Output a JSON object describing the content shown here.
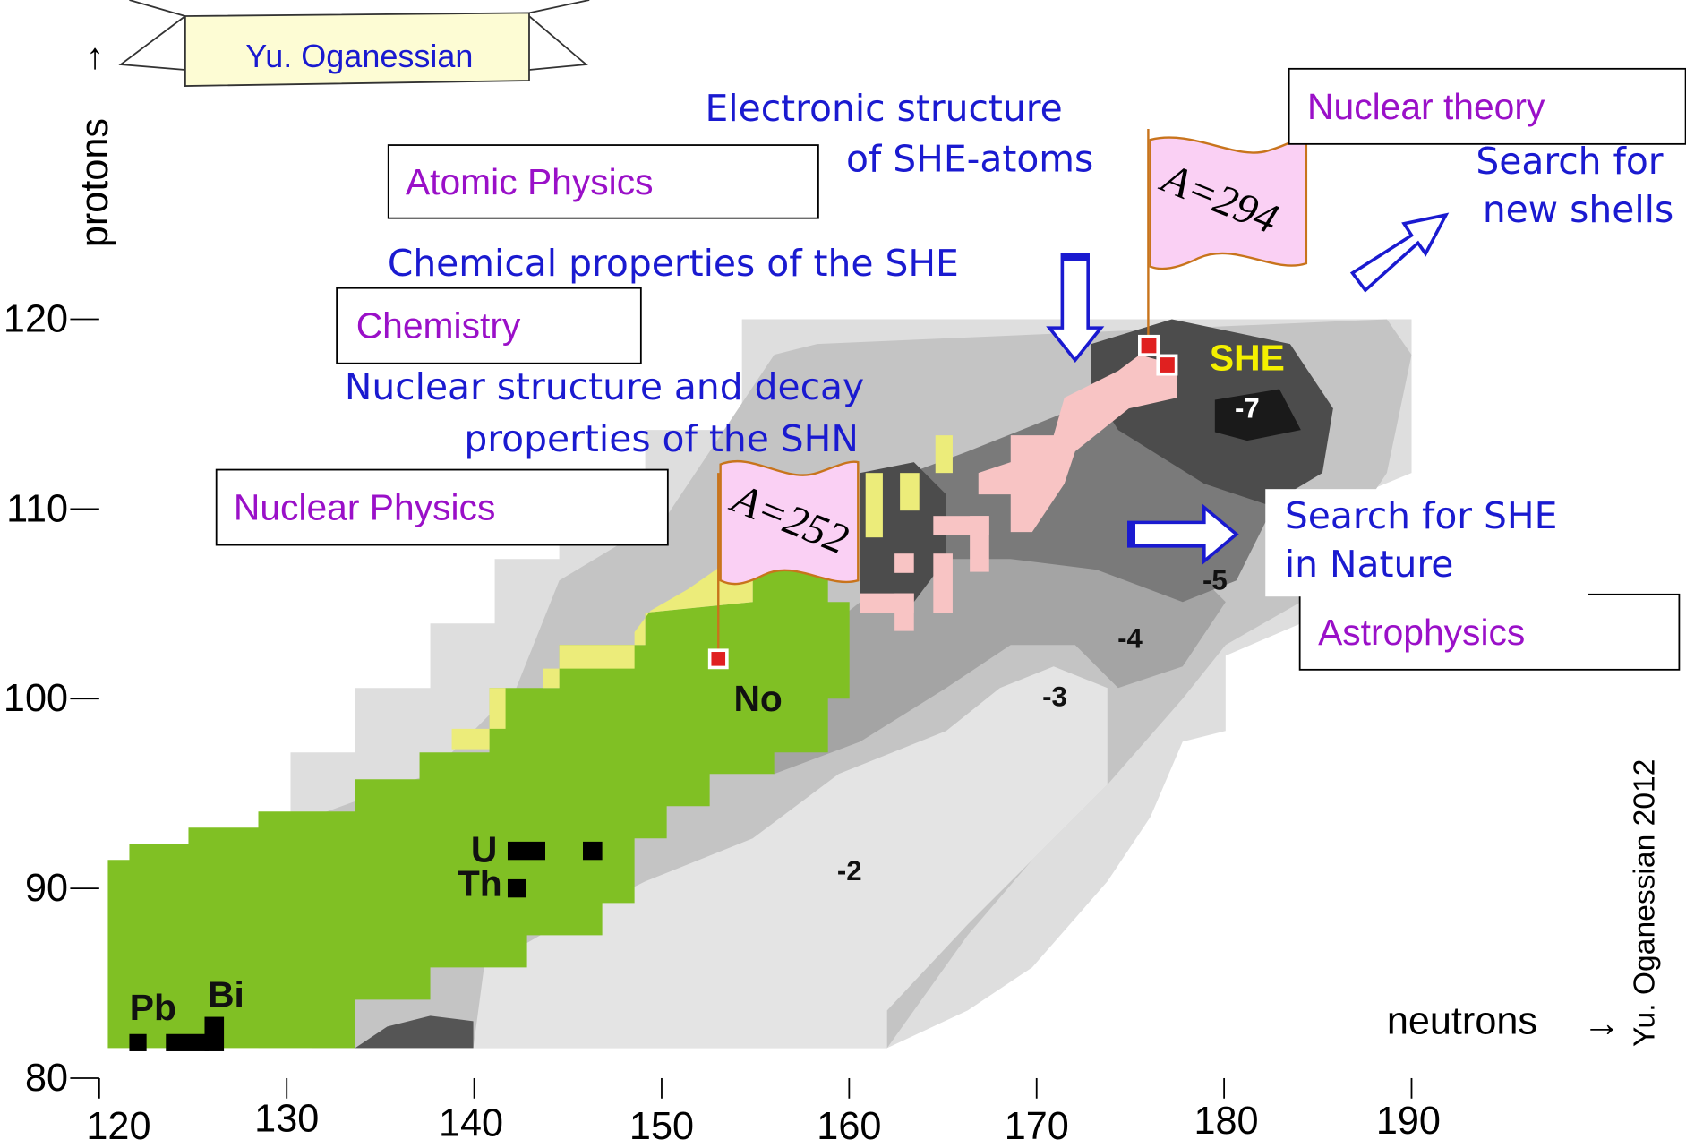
{
  "chart_data": {
    "type": "nuclide-map",
    "banner": "Yu. Oganessian",
    "credit": "Yu. Oganessian  2012",
    "y_label": "protons",
    "y_arrow": "↑",
    "x_label": "neutrons",
    "x_arrow": "→",
    "xlim": [
      120,
      190
    ],
    "ylim": [
      80,
      120
    ],
    "xticks": [
      120,
      130,
      140,
      150,
      160,
      170,
      180,
      190
    ],
    "yticks": [
      80,
      90,
      100,
      110,
      120
    ],
    "boxes": [
      "Atomic Physics",
      "Chemistry",
      "Nuclear Physics",
      "Nuclear theory",
      "Astrophysics"
    ],
    "annotations": [
      "Electronic structure",
      "of SHE-atoms",
      "Chemical properties of the SHE",
      "Nuclear structure and decay",
      "properties of the SHN",
      "Search for",
      "new shells",
      "Search for SHE",
      "in Nature"
    ],
    "flags": [
      "A=294",
      "A=252"
    ],
    "element_labels": [
      "SHE",
      "No",
      "U",
      "Th",
      "Pb",
      "Bi"
    ],
    "contour_labels": [
      -2,
      -3,
      -4,
      -5,
      -7
    ]
  }
}
